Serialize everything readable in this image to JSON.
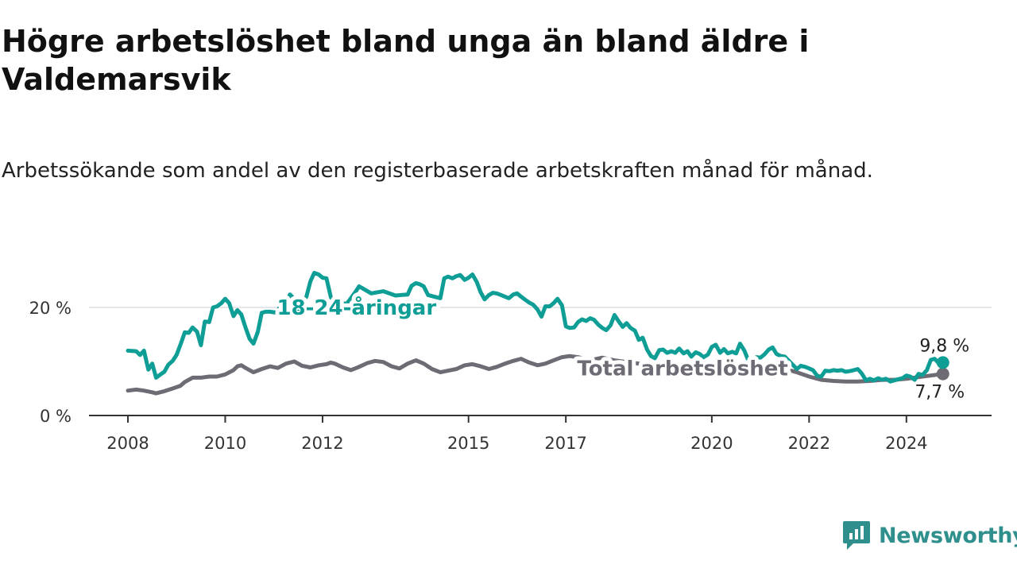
{
  "title": "Högre arbetslöshet bland unga än bland äldre i Valdemarsvik",
  "subtitle": "Arbetssökande som andel av den registerbaserade arbetskraften månad för månad.",
  "brand": {
    "name": "Newsworthy",
    "icon": "newsworthy-logo-icon"
  },
  "colors": {
    "youth": "#0e9e96",
    "total": "#6e6b75",
    "grid": "#dddddd",
    "axis": "#333333"
  },
  "chart_data": {
    "type": "line",
    "ylim": [
      0,
      30
    ],
    "y_ticks": [
      {
        "value": 0,
        "label": "0 %"
      },
      {
        "value": 20,
        "label": "20 %"
      }
    ],
    "x_ticks": [
      {
        "value": 2008,
        "label": "2008"
      },
      {
        "value": 2010,
        "label": "2010"
      },
      {
        "value": 2012,
        "label": "2012"
      },
      {
        "value": 2015,
        "label": "2015"
      },
      {
        "value": 2017,
        "label": "2017"
      },
      {
        "value": 2020,
        "label": "2020"
      },
      {
        "value": 2022,
        "label": "2022"
      },
      {
        "value": 2024,
        "label": "2024"
      }
    ],
    "xlim": [
      2007.2,
      2025.75
    ],
    "grid": "horizontal",
    "series": [
      {
        "name": "18-24-åringar",
        "color": "#0e9e96",
        "end_label": "9,8 %",
        "points": [
          [
            2008.0,
            12.0
          ],
          [
            2008.17,
            11.9
          ],
          [
            2008.25,
            11.2
          ],
          [
            2008.33,
            12.0
          ],
          [
            2008.42,
            8.5
          ],
          [
            2008.5,
            9.6
          ],
          [
            2008.58,
            7.0
          ],
          [
            2008.67,
            7.6
          ],
          [
            2008.75,
            8.1
          ],
          [
            2008.83,
            9.4
          ],
          [
            2008.92,
            10.1
          ],
          [
            2009.0,
            11.2
          ],
          [
            2009.08,
            13.1
          ],
          [
            2009.17,
            15.4
          ],
          [
            2009.25,
            15.3
          ],
          [
            2009.33,
            16.3
          ],
          [
            2009.42,
            15.5
          ],
          [
            2009.5,
            13.0
          ],
          [
            2009.58,
            17.4
          ],
          [
            2009.67,
            17.3
          ],
          [
            2009.75,
            20.0
          ],
          [
            2009.83,
            20.2
          ],
          [
            2009.92,
            20.8
          ],
          [
            2010.0,
            21.6
          ],
          [
            2010.08,
            20.8
          ],
          [
            2010.17,
            18.4
          ],
          [
            2010.25,
            19.5
          ],
          [
            2010.33,
            18.7
          ],
          [
            2010.42,
            16.2
          ],
          [
            2010.5,
            14.2
          ],
          [
            2010.58,
            13.3
          ],
          [
            2010.67,
            15.5
          ],
          [
            2010.75,
            19.0
          ],
          [
            2010.83,
            19.2
          ],
          [
            2010.92,
            19.2
          ],
          [
            2011.0,
            19.1
          ],
          [
            2011.08,
            19.0
          ],
          [
            2011.17,
            21.5
          ],
          [
            2011.25,
            20.7
          ],
          [
            2011.33,
            22.4
          ],
          [
            2011.42,
            21.6
          ],
          [
            2011.5,
            18.4
          ],
          [
            2011.58,
            20.8
          ],
          [
            2011.67,
            22.0
          ],
          [
            2011.75,
            24.8
          ],
          [
            2011.83,
            26.4
          ],
          [
            2011.92,
            26.1
          ],
          [
            2012.0,
            25.5
          ],
          [
            2012.08,
            25.4
          ],
          [
            2012.17,
            21.9
          ],
          [
            2012.25,
            20.9
          ],
          [
            2012.5,
            20.7
          ],
          [
            2012.67,
            22.8
          ],
          [
            2012.75,
            23.9
          ],
          [
            2012.83,
            23.5
          ],
          [
            2013.0,
            22.6
          ],
          [
            2013.25,
            23.0
          ],
          [
            2013.5,
            22.2
          ],
          [
            2013.75,
            22.4
          ],
          [
            2013.83,
            24.0
          ],
          [
            2013.92,
            24.5
          ],
          [
            2014.0,
            24.3
          ],
          [
            2014.08,
            23.9
          ],
          [
            2014.17,
            22.3
          ],
          [
            2014.42,
            21.7
          ],
          [
            2014.5,
            25.4
          ],
          [
            2014.58,
            25.7
          ],
          [
            2014.67,
            25.4
          ],
          [
            2014.75,
            25.8
          ],
          [
            2014.83,
            26.0
          ],
          [
            2014.92,
            25.1
          ],
          [
            2015.0,
            25.5
          ],
          [
            2015.08,
            26.1
          ],
          [
            2015.17,
            24.7
          ],
          [
            2015.25,
            22.8
          ],
          [
            2015.33,
            21.5
          ],
          [
            2015.42,
            22.3
          ],
          [
            2015.5,
            22.7
          ],
          [
            2015.58,
            22.6
          ],
          [
            2015.67,
            22.3
          ],
          [
            2015.75,
            22.0
          ],
          [
            2015.83,
            21.7
          ],
          [
            2015.92,
            22.4
          ],
          [
            2016.0,
            22.6
          ],
          [
            2016.08,
            22.0
          ],
          [
            2016.17,
            21.4
          ],
          [
            2016.25,
            20.9
          ],
          [
            2016.33,
            20.5
          ],
          [
            2016.42,
            19.6
          ],
          [
            2016.5,
            18.3
          ],
          [
            2016.58,
            20.2
          ],
          [
            2016.67,
            20.2
          ],
          [
            2016.75,
            20.8
          ],
          [
            2016.83,
            21.6
          ],
          [
            2016.92,
            20.4
          ],
          [
            2017.0,
            16.5
          ],
          [
            2017.08,
            16.2
          ],
          [
            2017.17,
            16.3
          ],
          [
            2017.25,
            17.3
          ],
          [
            2017.33,
            17.8
          ],
          [
            2017.42,
            17.5
          ],
          [
            2017.5,
            18.0
          ],
          [
            2017.58,
            17.7
          ],
          [
            2017.67,
            16.8
          ],
          [
            2017.75,
            16.2
          ],
          [
            2017.83,
            15.8
          ],
          [
            2017.92,
            16.7
          ],
          [
            2018.0,
            18.6
          ],
          [
            2018.08,
            17.5
          ],
          [
            2018.17,
            16.4
          ],
          [
            2018.25,
            17.1
          ],
          [
            2018.33,
            16.2
          ],
          [
            2018.42,
            15.7
          ],
          [
            2018.5,
            14.0
          ],
          [
            2018.58,
            14.4
          ],
          [
            2018.67,
            12.2
          ],
          [
            2018.75,
            11.0
          ],
          [
            2018.83,
            10.6
          ],
          [
            2018.92,
            12.1
          ],
          [
            2019.0,
            12.2
          ],
          [
            2019.08,
            11.6
          ],
          [
            2019.17,
            11.9
          ],
          [
            2019.25,
            11.6
          ],
          [
            2019.33,
            12.4
          ],
          [
            2019.42,
            11.5
          ],
          [
            2019.5,
            11.9
          ],
          [
            2019.58,
            10.9
          ],
          [
            2019.67,
            11.7
          ],
          [
            2019.75,
            11.4
          ],
          [
            2019.83,
            10.8
          ],
          [
            2019.92,
            11.3
          ],
          [
            2020.0,
            12.7
          ],
          [
            2020.08,
            13.1
          ],
          [
            2020.17,
            11.6
          ],
          [
            2020.25,
            12.3
          ],
          [
            2020.33,
            11.5
          ],
          [
            2020.42,
            11.8
          ],
          [
            2020.5,
            11.5
          ],
          [
            2020.58,
            13.3
          ],
          [
            2020.67,
            12.0
          ],
          [
            2020.75,
            10.2
          ],
          [
            2020.83,
            10.4
          ],
          [
            2020.92,
            10.8
          ],
          [
            2021.0,
            10.7
          ],
          [
            2021.08,
            11.3
          ],
          [
            2021.17,
            12.2
          ],
          [
            2021.25,
            12.6
          ],
          [
            2021.33,
            11.4
          ],
          [
            2021.42,
            11.0
          ],
          [
            2021.5,
            10.9
          ],
          [
            2021.75,
            8.6
          ],
          [
            2021.83,
            9.2
          ],
          [
            2021.92,
            9.0
          ],
          [
            2022.0,
            8.7
          ],
          [
            2022.08,
            8.4
          ],
          [
            2022.17,
            7.3
          ],
          [
            2022.25,
            7.2
          ],
          [
            2022.33,
            8.3
          ],
          [
            2022.42,
            8.2
          ],
          [
            2022.5,
            8.4
          ],
          [
            2022.58,
            8.3
          ],
          [
            2022.67,
            8.4
          ],
          [
            2022.75,
            8.1
          ],
          [
            2022.83,
            8.2
          ],
          [
            2022.92,
            8.4
          ],
          [
            2023.0,
            8.6
          ],
          [
            2023.08,
            7.8
          ],
          [
            2023.17,
            6.5
          ],
          [
            2023.25,
            6.8
          ],
          [
            2023.33,
            6.5
          ],
          [
            2023.42,
            6.9
          ],
          [
            2023.5,
            6.6
          ],
          [
            2023.58,
            6.8
          ],
          [
            2023.67,
            6.3
          ],
          [
            2023.75,
            6.5
          ],
          [
            2023.83,
            6.7
          ],
          [
            2023.92,
            6.9
          ],
          [
            2024.0,
            7.4
          ],
          [
            2024.08,
            7.2
          ],
          [
            2024.17,
            6.6
          ],
          [
            2024.25,
            7.7
          ],
          [
            2024.33,
            7.5
          ],
          [
            2024.42,
            8.4
          ],
          [
            2024.5,
            10.3
          ],
          [
            2024.58,
            10.5
          ],
          [
            2024.67,
            9.6
          ],
          [
            2024.75,
            9.8
          ]
        ]
      },
      {
        "name": "Total arbetslöshet",
        "color": "#6e6b75",
        "end_label": "7,7 %",
        "points": [
          [
            2008.0,
            4.6
          ],
          [
            2008.17,
            4.8
          ],
          [
            2008.33,
            4.6
          ],
          [
            2008.5,
            4.3
          ],
          [
            2008.58,
            4.1
          ],
          [
            2008.75,
            4.5
          ],
          [
            2008.92,
            5.0
          ],
          [
            2009.08,
            5.5
          ],
          [
            2009.17,
            6.2
          ],
          [
            2009.33,
            7.0
          ],
          [
            2009.5,
            7.0
          ],
          [
            2009.67,
            7.2
          ],
          [
            2009.83,
            7.2
          ],
          [
            2010.0,
            7.6
          ],
          [
            2010.17,
            8.4
          ],
          [
            2010.25,
            9.1
          ],
          [
            2010.33,
            9.3
          ],
          [
            2010.42,
            8.8
          ],
          [
            2010.58,
            8.0
          ],
          [
            2010.75,
            8.6
          ],
          [
            2010.92,
            9.1
          ],
          [
            2011.08,
            8.8
          ],
          [
            2011.25,
            9.6
          ],
          [
            2011.42,
            10.0
          ],
          [
            2011.58,
            9.2
          ],
          [
            2011.75,
            8.9
          ],
          [
            2011.92,
            9.3
          ],
          [
            2012.08,
            9.5
          ],
          [
            2012.17,
            9.8
          ],
          [
            2012.25,
            9.6
          ],
          [
            2012.42,
            8.9
          ],
          [
            2012.58,
            8.4
          ],
          [
            2012.75,
            9.0
          ],
          [
            2012.92,
            9.7
          ],
          [
            2013.08,
            10.1
          ],
          [
            2013.25,
            9.9
          ],
          [
            2013.42,
            9.1
          ],
          [
            2013.58,
            8.7
          ],
          [
            2013.75,
            9.6
          ],
          [
            2013.92,
            10.2
          ],
          [
            2014.08,
            9.6
          ],
          [
            2014.25,
            8.6
          ],
          [
            2014.42,
            8.0
          ],
          [
            2014.58,
            8.3
          ],
          [
            2014.75,
            8.6
          ],
          [
            2014.92,
            9.3
          ],
          [
            2015.08,
            9.5
          ],
          [
            2015.25,
            9.1
          ],
          [
            2015.42,
            8.6
          ],
          [
            2015.58,
            9.0
          ],
          [
            2015.75,
            9.6
          ],
          [
            2015.92,
            10.1
          ],
          [
            2016.08,
            10.5
          ],
          [
            2016.25,
            9.8
          ],
          [
            2016.42,
            9.3
          ],
          [
            2016.58,
            9.6
          ],
          [
            2016.75,
            10.2
          ],
          [
            2016.92,
            10.8
          ],
          [
            2017.08,
            11.0
          ],
          [
            2017.25,
            10.8
          ],
          [
            2017.5,
            10.2
          ],
          [
            2017.75,
            10.7
          ],
          [
            2018.0,
            10.2
          ],
          [
            2018.5,
            9.6
          ],
          [
            2019.0,
            9.4
          ],
          [
            2019.5,
            9.1
          ],
          [
            2020.0,
            9.5
          ],
          [
            2020.5,
            9.4
          ],
          [
            2021.0,
            9.0
          ],
          [
            2021.5,
            8.6
          ],
          [
            2021.75,
            8.0
          ],
          [
            2022.0,
            7.2
          ],
          [
            2022.25,
            6.6
          ],
          [
            2022.5,
            6.4
          ],
          [
            2022.75,
            6.3
          ],
          [
            2023.0,
            6.3
          ],
          [
            2023.25,
            6.4
          ],
          [
            2023.5,
            6.6
          ],
          [
            2023.75,
            6.6
          ],
          [
            2024.0,
            6.8
          ],
          [
            2024.25,
            7.1
          ],
          [
            2024.5,
            7.4
          ],
          [
            2024.75,
            7.7
          ]
        ]
      }
    ]
  }
}
